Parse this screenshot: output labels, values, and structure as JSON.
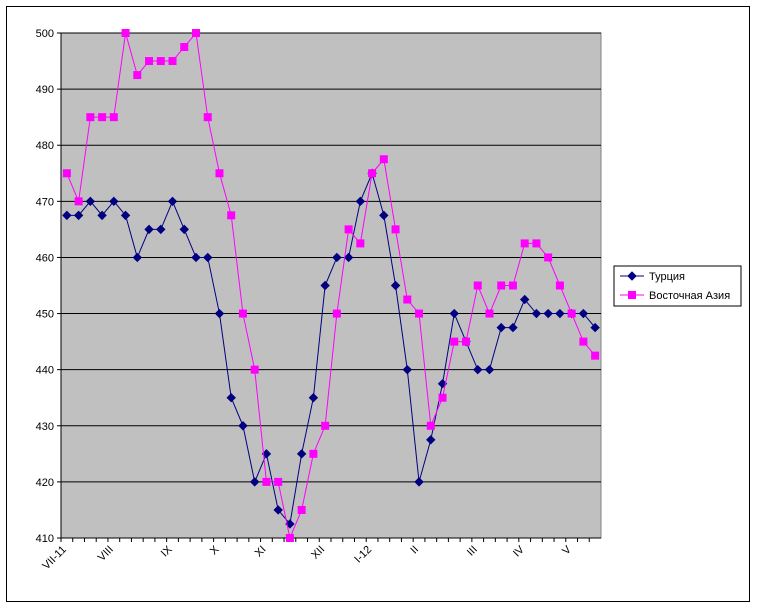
{
  "chart_data": {
    "type": "line",
    "categories": [
      "VII-11",
      null,
      null,
      null,
      "VIII",
      null,
      null,
      null,
      null,
      "IX",
      null,
      null,
      null,
      "X",
      null,
      null,
      null,
      "XI",
      null,
      null,
      null,
      null,
      "XII",
      null,
      null,
      null,
      "I-12",
      null,
      null,
      null,
      "II",
      null,
      null,
      null,
      null,
      "III",
      null,
      null,
      null,
      "IV",
      null,
      null,
      null,
      "V",
      null,
      null
    ],
    "series": [
      {
        "name": "Турция",
        "color": "#000080",
        "marker": "diamond",
        "values": [
          467.5,
          467.5,
          470,
          467.5,
          470,
          467.5,
          460,
          465,
          465,
          470,
          465,
          460,
          460,
          450,
          435,
          430,
          420,
          425,
          415,
          412.5,
          425,
          435,
          455,
          460,
          460,
          470,
          475,
          467.5,
          455,
          440,
          420,
          427.5,
          437.5,
          450,
          445,
          440,
          440,
          447.5,
          447.5,
          452.5,
          450,
          450,
          450,
          450,
          450,
          447.5
        ]
      },
      {
        "name": "Восточная Азия",
        "color": "#ff00ff",
        "marker": "square",
        "values": [
          475,
          470,
          485,
          485,
          485,
          500,
          492.5,
          495,
          495,
          495,
          497.5,
          500,
          485,
          475,
          467.5,
          450,
          440,
          420,
          420,
          410,
          415,
          425,
          430,
          450,
          465,
          462.5,
          475,
          477.5,
          465,
          452.5,
          450,
          430,
          435,
          445,
          445,
          455,
          450,
          455,
          455,
          462.5,
          462.5,
          460,
          455,
          450,
          445,
          442.5
        ]
      }
    ],
    "ylim": [
      410,
      500
    ],
    "yticks": [
      410,
      420,
      430,
      440,
      450,
      460,
      470,
      480,
      490,
      500
    ],
    "grid": true,
    "plot_background": "#c0c0c0",
    "legend": "right"
  }
}
